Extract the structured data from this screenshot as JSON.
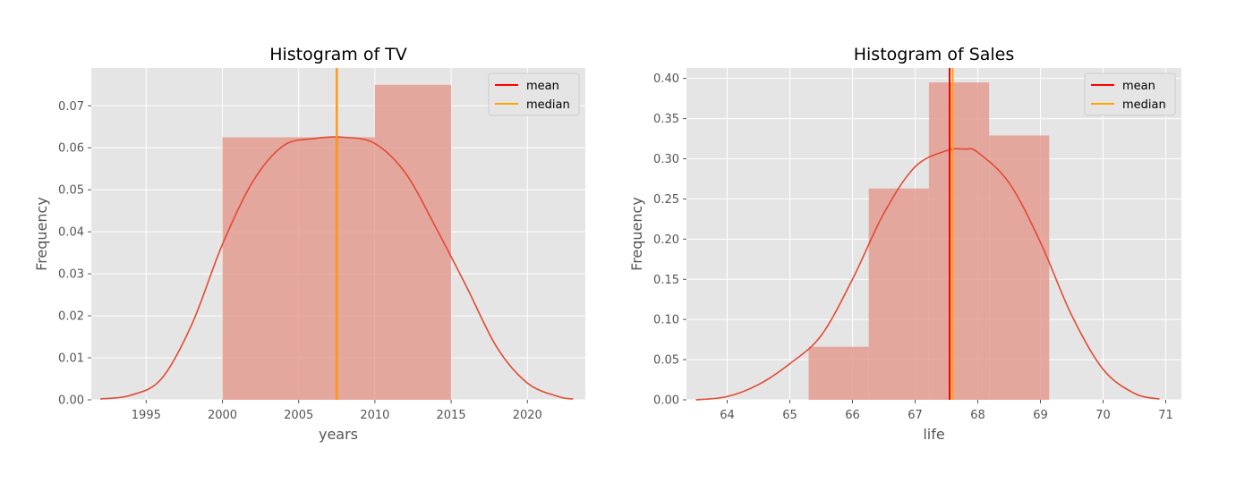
{
  "colors": {
    "background": "#ffffff",
    "axes_bg": "#e5e5e5",
    "grid": "#ffffff",
    "bar": "#e49c91",
    "kde": "#e24a33",
    "mean": "#ff0000",
    "median": "#ffa500",
    "text": "#555555",
    "title": "#000000",
    "legend_bg": "#e5e5e5",
    "legend_border": "#cccccc"
  },
  "chart_data": [
    {
      "type": "histogram",
      "title": "Histogram of TV",
      "xlabel": "years",
      "ylabel": "Frequency",
      "xlim": [
        1991.5,
        1993.5
      ],
      "xlim_note": "",
      "xrange": [
        1991.4,
        2023.8
      ],
      "ylim": [
        0,
        0.079
      ],
      "x_ticks": [
        1995,
        2000,
        2005,
        2010,
        2015,
        2020
      ],
      "y_ticks": [
        0.0,
        0.01,
        0.02,
        0.03,
        0.04,
        0.05,
        0.06,
        0.07
      ],
      "y_tick_decimals": 2,
      "grid": true,
      "bins": [
        {
          "x0": 2000,
          "x1": 2010,
          "value": 0.0625
        },
        {
          "x0": 2010,
          "x1": 2015,
          "value": 0.075
        }
      ],
      "kde": {
        "x": [
          1992,
          1994,
          1996,
          1998,
          2000,
          2002,
          2004,
          2006,
          2008,
          2010,
          2012,
          2014,
          2016,
          2018,
          2020,
          2022,
          2023
        ],
        "y": [
          0.0002,
          0.0011,
          0.005,
          0.018,
          0.037,
          0.052,
          0.0605,
          0.0622,
          0.0625,
          0.061,
          0.054,
          0.041,
          0.027,
          0.0125,
          0.004,
          0.0008,
          0.0002
        ]
      },
      "mean": 2007.5,
      "median": 2007.5,
      "legend": [
        "mean",
        "median"
      ],
      "legend_position": "top-right"
    },
    {
      "type": "histogram",
      "title": "Histogram of Sales",
      "xlabel": "life",
      "ylabel": "Frequency",
      "xrange": [
        63.35,
        71.25
      ],
      "ylim": [
        0,
        0.413
      ],
      "x_ticks": [
        64,
        65,
        66,
        67,
        68,
        69,
        70,
        71
      ],
      "y_ticks": [
        0.0,
        0.05,
        0.1,
        0.15,
        0.2,
        0.25,
        0.3,
        0.35,
        0.4
      ],
      "y_tick_decimals": 2,
      "grid": true,
      "bins": [
        {
          "x0": 65.3,
          "x1": 66.26,
          "value": 0.066
        },
        {
          "x0": 66.26,
          "x1": 67.22,
          "value": 0.263
        },
        {
          "x0": 67.22,
          "x1": 68.18,
          "value": 0.395
        },
        {
          "x0": 68.18,
          "x1": 69.14,
          "value": 0.329
        }
      ],
      "kde": {
        "x": [
          63.5,
          64.0,
          64.5,
          65.0,
          65.5,
          66.0,
          66.5,
          67.0,
          67.5,
          67.8,
          68.0,
          68.5,
          69.0,
          69.5,
          70.0,
          70.5,
          70.9
        ],
        "y": [
          0.0,
          0.004,
          0.019,
          0.045,
          0.08,
          0.15,
          0.232,
          0.29,
          0.31,
          0.312,
          0.308,
          0.27,
          0.196,
          0.105,
          0.038,
          0.008,
          0.001
        ]
      },
      "mean": 67.55,
      "median": 67.6,
      "legend": [
        "mean",
        "median"
      ],
      "legend_position": "top-right"
    }
  ]
}
